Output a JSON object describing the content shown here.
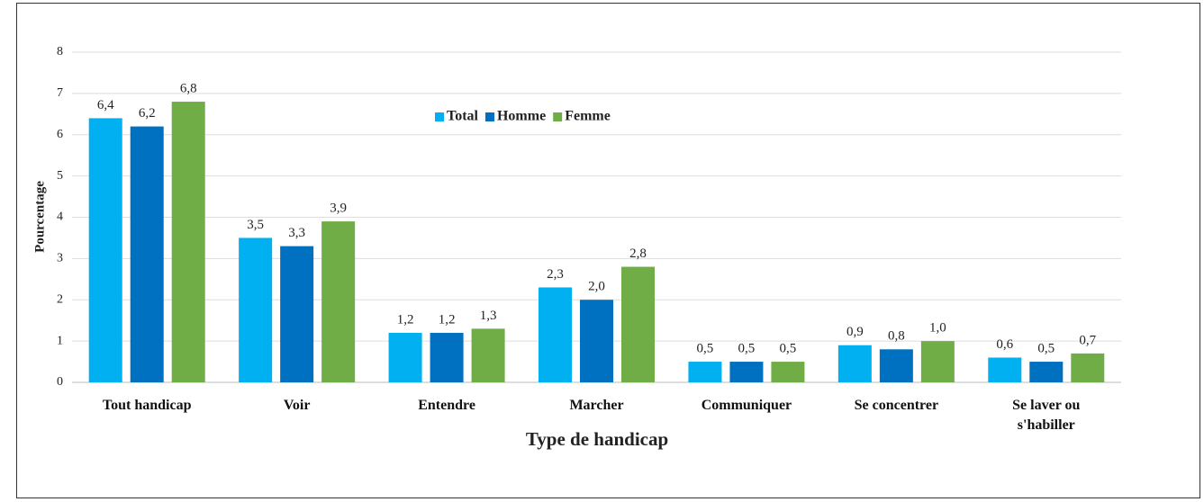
{
  "chart_data": {
    "type": "bar",
    "x_label": "Type de handicap",
    "y_label": "Pourcentage",
    "categories": [
      "Tout handicap",
      "Voir",
      "Entendre",
      "Marcher",
      "Communiquer",
      "Se concentrer",
      "Se laver ou s'habiller"
    ],
    "series": [
      {
        "name": "Total",
        "color": "#00b0f0",
        "values": [
          6.4,
          3.5,
          1.2,
          2.3,
          0.5,
          0.9,
          0.6
        ],
        "value_labels": [
          "6,4",
          "3,5",
          "1,2",
          "2,3",
          "0,5",
          "0,9",
          "0,6"
        ]
      },
      {
        "name": "Homme",
        "color": "#0070c0",
        "values": [
          6.2,
          3.3,
          1.2,
          2.0,
          0.5,
          0.8,
          0.5
        ],
        "value_labels": [
          "6,2",
          "3,3",
          "1,2",
          "2,0",
          "0,5",
          "0,8",
          "0,5"
        ]
      },
      {
        "name": "Femme",
        "color": "#70ad47",
        "values": [
          6.8,
          3.9,
          1.3,
          2.8,
          0.5,
          1.0,
          0.7
        ],
        "value_labels": [
          "6,8",
          "3,9",
          "1,3",
          "2,8",
          "0,5",
          "1,0",
          "0,7"
        ]
      }
    ],
    "ylim": [
      0,
      8
    ],
    "yticks": [
      0,
      1,
      2,
      3,
      4,
      5,
      6,
      7,
      8
    ],
    "grid": true,
    "legend": "top"
  }
}
